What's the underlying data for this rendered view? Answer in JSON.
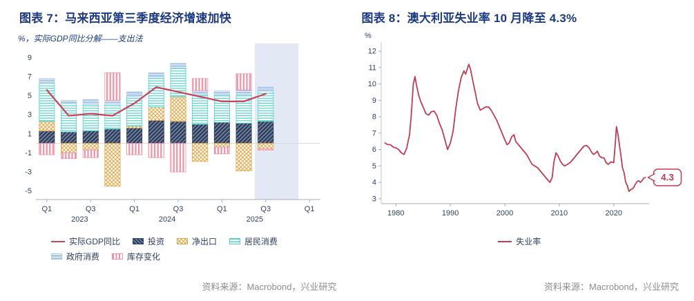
{
  "left": {
    "title": "图表 7：马来西亚第三季度经济增速加快",
    "source": "资料来源：Macrobond，兴业研究"
  },
  "right": {
    "title": "图表 8：澳大利亚失业率 10 月降至 4.3%",
    "source": "资料来源：Macrobond，兴业研究"
  },
  "colors": {
    "title": "#1B3A85",
    "axis_text": "#2E3F63",
    "source_text": "#8C8C8C",
    "gdp_line": "#C9455C",
    "investment": "#2E4061",
    "net_exports": "#E8A33D",
    "household": "#4FD2CA",
    "government": "#A9C7EA",
    "inventories": "#F090A4",
    "unemployment_line": "#C23B52",
    "band": "#E2E9F5"
  },
  "chart_data": [
    {
      "type": "bar",
      "variant": "stacked-bar-with-line",
      "inner_title": "%，实际GDP同比分解——支出法",
      "unit": "%",
      "categories": [
        "2023Q1",
        "2023Q2",
        "2023Q3",
        "2023Q4",
        "2024Q1",
        "2024Q2",
        "2024Q3",
        "2024Q4",
        "2025Q1",
        "2025Q2",
        "2025Q3"
      ],
      "x_axis": {
        "n_slots": 13,
        "tick_indices": [
          0,
          2,
          4,
          6,
          8,
          10,
          12
        ],
        "tick_labels": [
          "Q1",
          "Q3",
          "Q1",
          "Q3",
          "Q1",
          "Q3",
          "Q1"
        ],
        "year_labels": [
          {
            "text": "2023",
            "index": 1.5
          },
          {
            "text": "2024",
            "index": 5.5
          },
          {
            "text": "2025",
            "index": 9.5
          }
        ]
      },
      "y_axis": {
        "min": -5,
        "max": 9,
        "ticks": [
          9,
          7,
          5,
          3,
          1,
          -1,
          -3,
          -5
        ]
      },
      "highlight_band": {
        "from_slot": 10,
        "to_slot": 12
      },
      "bar_series": [
        {
          "name": "投资",
          "key": "investment",
          "pattern": "solid-diag",
          "values": [
            1.3,
            1.2,
            1.3,
            1.5,
            1.6,
            2.4,
            2.3,
            2.0,
            2.2,
            2.1,
            2.3
          ]
        },
        {
          "name": "净出口",
          "key": "net_exports",
          "pattern": "lattice",
          "values": [
            1.0,
            -1.0,
            -0.7,
            -4.5,
            0.2,
            1.4,
            2.6,
            -1.9,
            -0.4,
            -2.9,
            -0.6
          ]
        },
        {
          "name": "居民消费",
          "key": "household",
          "pattern": "h-lines",
          "values": [
            4.0,
            3.0,
            2.8,
            2.6,
            3.1,
            3.2,
            3.0,
            3.1,
            2.9,
            3.0,
            3.2
          ]
        },
        {
          "name": "政府消费",
          "key": "government",
          "pattern": "h-lines-dense",
          "values": [
            0.5,
            0.3,
            0.5,
            0.4,
            0.5,
            0.4,
            0.5,
            0.4,
            0.4,
            0.5,
            0.4
          ]
        },
        {
          "name": "库存变化",
          "key": "inventories",
          "pattern": "v-bars",
          "values": [
            -1.2,
            -0.6,
            -0.8,
            2.9,
            -1.2,
            -1.5,
            -3.0,
            1.3,
            -0.7,
            1.7,
            -0.1
          ]
        }
      ],
      "line_series": {
        "name": "实际GDP同比",
        "key": "gdp_line",
        "values": [
          5.6,
          2.9,
          3.1,
          2.9,
          4.2,
          5.9,
          5.4,
          4.9,
          4.4,
          4.4,
          5.2
        ]
      },
      "legend_rows": [
        [
          "实际GDP同比",
          "投资",
          "净出口",
          "居民消费"
        ],
        [
          "政府消费",
          "库存变化"
        ]
      ]
    },
    {
      "type": "line",
      "unit": "%",
      "x_axis": {
        "min": 1977.3,
        "max": 2026.5,
        "ticks": [
          1980,
          1990,
          2000,
          2010,
          2020
        ]
      },
      "y_axis": {
        "min": 3,
        "max": 12,
        "ticks": [
          3,
          4,
          5,
          6,
          7,
          8,
          9,
          10,
          11,
          12
        ]
      },
      "series": [
        {
          "name": "失业率",
          "key": "unemployment_line",
          "points": [
            [
              1978,
              6.4
            ],
            [
              1978.5,
              6.3
            ],
            [
              1979,
              6.3
            ],
            [
              1979.5,
              6.15
            ],
            [
              1980,
              6.1
            ],
            [
              1980.5,
              6.0
            ],
            [
              1981,
              5.8
            ],
            [
              1981.5,
              5.7
            ],
            [
              1982,
              6.1
            ],
            [
              1982.5,
              6.9
            ],
            [
              1982.8,
              8.0
            ],
            [
              1983.2,
              10.0
            ],
            [
              1983.5,
              10.45
            ],
            [
              1983.8,
              9.9
            ],
            [
              1984.2,
              9.3
            ],
            [
              1984.6,
              8.9
            ],
            [
              1985,
              8.6
            ],
            [
              1985.5,
              8.2
            ],
            [
              1986,
              8.1
            ],
            [
              1986.5,
              8.3
            ],
            [
              1987,
              8.35
            ],
            [
              1987.5,
              8.1
            ],
            [
              1988,
              7.6
            ],
            [
              1988.5,
              7.2
            ],
            [
              1989,
              6.6
            ],
            [
              1989.5,
              6.0
            ],
            [
              1990,
              6.4
            ],
            [
              1990.5,
              7.1
            ],
            [
              1991,
              8.5
            ],
            [
              1991.5,
              9.6
            ],
            [
              1992,
              10.4
            ],
            [
              1992.5,
              10.8
            ],
            [
              1992.8,
              10.6
            ],
            [
              1993.1,
              10.9
            ],
            [
              1993.4,
              11.2
            ],
            [
              1993.7,
              10.9
            ],
            [
              1994,
              10.4
            ],
            [
              1994.5,
              9.6
            ],
            [
              1995,
              8.8
            ],
            [
              1995.5,
              8.4
            ],
            [
              1996,
              8.5
            ],
            [
              1996.5,
              8.6
            ],
            [
              1997,
              8.6
            ],
            [
              1997.5,
              8.4
            ],
            [
              1998,
              8.1
            ],
            [
              1998.5,
              7.8
            ],
            [
              1999,
              7.4
            ],
            [
              1999.5,
              7.0
            ],
            [
              2000,
              6.6
            ],
            [
              2000.4,
              6.3
            ],
            [
              2000.8,
              6.4
            ],
            [
              2001.3,
              6.8
            ],
            [
              2001.7,
              6.9
            ],
            [
              2002,
              6.5
            ],
            [
              2002.5,
              6.3
            ],
            [
              2003,
              6.1
            ],
            [
              2003.5,
              5.9
            ],
            [
              2004,
              5.7
            ],
            [
              2004.5,
              5.4
            ],
            [
              2005,
              5.1
            ],
            [
              2005.5,
              5.0
            ],
            [
              2006,
              4.9
            ],
            [
              2006.5,
              4.7
            ],
            [
              2007,
              4.5
            ],
            [
              2007.5,
              4.3
            ],
            [
              2008,
              4.1
            ],
            [
              2008.3,
              4.0
            ],
            [
              2008.7,
              4.3
            ],
            [
              2009,
              5.2
            ],
            [
              2009.4,
              5.8
            ],
            [
              2009.8,
              5.6
            ],
            [
              2010.2,
              5.3
            ],
            [
              2010.6,
              5.1
            ],
            [
              2011,
              5.0
            ],
            [
              2011.5,
              5.1
            ],
            [
              2012,
              5.2
            ],
            [
              2012.5,
              5.4
            ],
            [
              2013,
              5.6
            ],
            [
              2013.5,
              5.8
            ],
            [
              2014,
              6.0
            ],
            [
              2014.5,
              6.2
            ],
            [
              2015,
              6.25
            ],
            [
              2015.5,
              6.1
            ],
            [
              2016,
              5.8
            ],
            [
              2016.3,
              5.7
            ],
            [
              2016.7,
              5.8
            ],
            [
              2017,
              5.9
            ],
            [
              2017.4,
              5.6
            ],
            [
              2017.8,
              5.5
            ],
            [
              2018.2,
              5.5
            ],
            [
              2018.6,
              5.2
            ],
            [
              2019,
              5.1
            ],
            [
              2019.5,
              5.25
            ],
            [
              2020,
              5.2
            ],
            [
              2020.3,
              6.4
            ],
            [
              2020.5,
              7.4
            ],
            [
              2020.8,
              6.9
            ],
            [
              2021,
              6.4
            ],
            [
              2021.3,
              5.7
            ],
            [
              2021.6,
              4.9
            ],
            [
              2021.9,
              4.6
            ],
            [
              2022.2,
              4.0
            ],
            [
              2022.5,
              3.8
            ],
            [
              2022.8,
              3.45
            ],
            [
              2023.1,
              3.55
            ],
            [
              2023.4,
              3.6
            ],
            [
              2023.7,
              3.7
            ],
            [
              2024,
              3.9
            ],
            [
              2024.3,
              4.05
            ],
            [
              2024.6,
              4.1
            ],
            [
              2024.9,
              4.0
            ],
            [
              2025.2,
              4.1
            ],
            [
              2025.5,
              4.25
            ],
            [
              2025.8,
              4.3
            ]
          ]
        }
      ],
      "annotation": {
        "text": "4.3",
        "x": 2025.8,
        "y": 4.3
      },
      "legend": [
        "失业率"
      ]
    }
  ]
}
